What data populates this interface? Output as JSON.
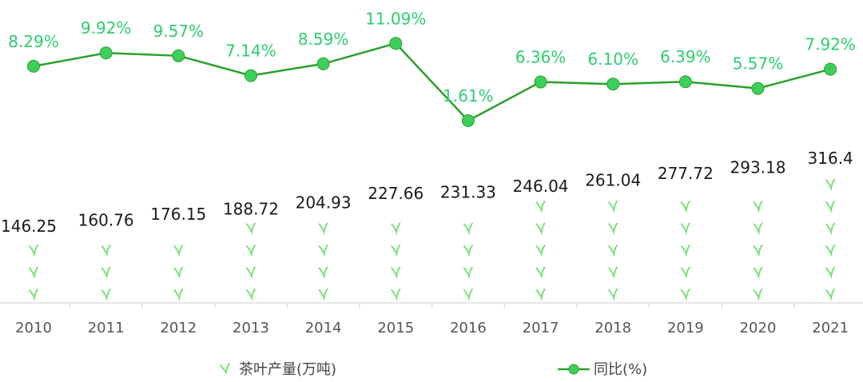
{
  "chart_data": {
    "type": "bar",
    "categories": [
      "2010",
      "2011",
      "2012",
      "2013",
      "2014",
      "2015",
      "2016",
      "2017",
      "2018",
      "2019",
      "2020",
      "2021"
    ],
    "series": [
      {
        "name": "茶叶产量(万吨)",
        "type": "pictorial-bar",
        "values": [
          146.25,
          160.76,
          176.15,
          188.72,
          204.93,
          227.66,
          231.33,
          246.04,
          261.04,
          277.72,
          293.18,
          316.4
        ],
        "labels": [
          "146.25",
          "160.76",
          "176.15",
          "188.72",
          "204.93",
          "227.66",
          "231.33",
          "246.04",
          "261.04",
          "277.72",
          "293.18",
          "316.4"
        ]
      },
      {
        "name": "同比(%)",
        "type": "line",
        "values": [
          8.29,
          9.92,
          9.57,
          7.14,
          8.59,
          11.09,
          1.61,
          6.36,
          6.1,
          6.39,
          5.57,
          7.92
        ],
        "labels": [
          "8.29%",
          "9.92%",
          "9.57%",
          "7.14%",
          "8.59%",
          "11.09%",
          "1.61%",
          "6.36%",
          "6.10%",
          "6.39%",
          "5.57%",
          "7.92%"
        ]
      }
    ],
    "legend_position": "bottom",
    "grid": false,
    "colors": {
      "line": "#2ba02b",
      "marker": "#3ecf5a",
      "pct_label": "#2ecc71",
      "leaf": "#7ee07e"
    }
  }
}
